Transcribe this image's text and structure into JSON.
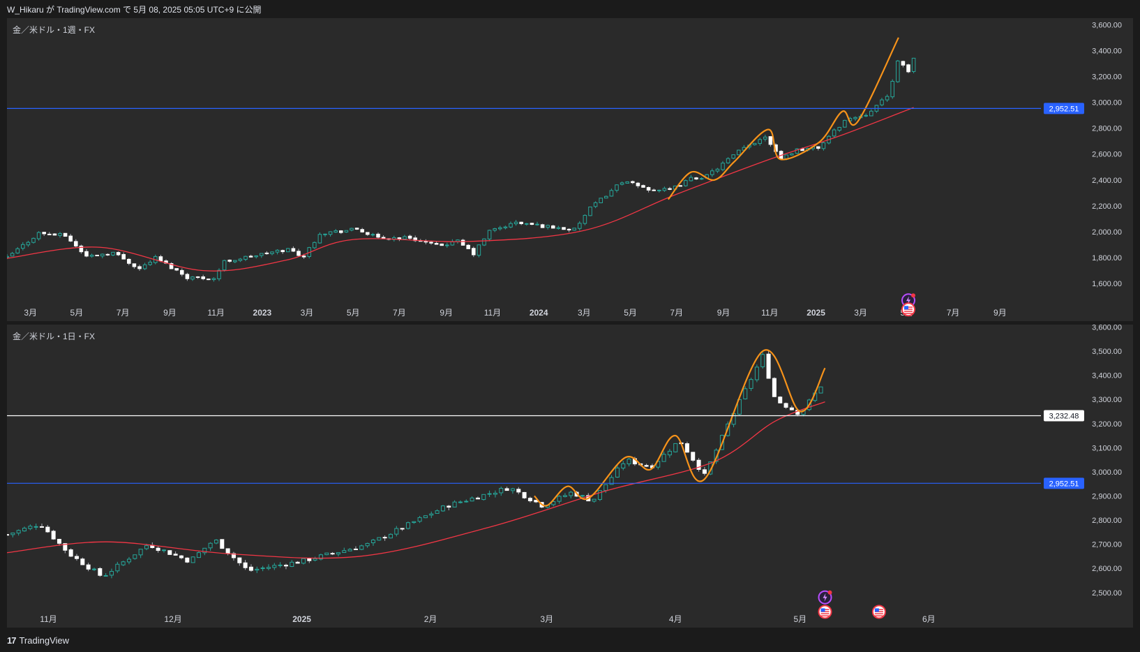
{
  "header": {
    "publish_info": "W_Hikaru が TradingView.com で 5月 08, 2025 05:05 UTC+9 に公開"
  },
  "footer": {
    "brand": "TradingView",
    "logo_glyph": "17"
  },
  "colors": {
    "up": "#26a69a",
    "down_fill": "#ffffff",
    "ma": "#f23645",
    "pattern": "#f7931a",
    "support": "#2962ff",
    "price_line": "#ffffff"
  },
  "chart_data": [
    {
      "type": "candlestick",
      "title": "金／米ドル・1週・FX",
      "ylim": [
        1450,
        3650
      ],
      "y_ticks": [
        "1,600.00",
        "1,800.00",
        "2,000.00",
        "2,200.00",
        "2,400.00",
        "2,600.00",
        "2,800.00",
        "3,000.00",
        "3,200.00",
        "3,400.00",
        "3,600.00"
      ],
      "y_tick_values": [
        1600,
        1800,
        2000,
        2200,
        2400,
        2600,
        2800,
        3000,
        3200,
        3400,
        3600
      ],
      "x_range": [
        "2022-01-29",
        "2025-10-25"
      ],
      "x_ticks": [
        {
          "label": "3月",
          "date": "2022-03-01"
        },
        {
          "label": "5月",
          "date": "2022-05-01"
        },
        {
          "label": "7月",
          "date": "2022-07-01"
        },
        {
          "label": "9月",
          "date": "2022-09-01"
        },
        {
          "label": "11月",
          "date": "2022-11-01"
        },
        {
          "label": "2023",
          "date": "2023-01-01",
          "bold": true
        },
        {
          "label": "3月",
          "date": "2023-03-01"
        },
        {
          "label": "5月",
          "date": "2023-05-01"
        },
        {
          "label": "7月",
          "date": "2023-07-01"
        },
        {
          "label": "9月",
          "date": "2023-09-01"
        },
        {
          "label": "11月",
          "date": "2023-11-01"
        },
        {
          "label": "2024",
          "date": "2024-01-01",
          "bold": true
        },
        {
          "label": "3月",
          "date": "2024-03-01"
        },
        {
          "label": "5月",
          "date": "2024-05-01"
        },
        {
          "label": "7月",
          "date": "2024-07-01"
        },
        {
          "label": "9月",
          "date": "2024-09-01"
        },
        {
          "label": "11月",
          "date": "2024-11-01"
        },
        {
          "label": "2025",
          "date": "2025-01-01",
          "bold": true
        },
        {
          "label": "3月",
          "date": "2025-03-01"
        },
        {
          "label": "5月",
          "date": "2025-05-01"
        },
        {
          "label": "7月",
          "date": "2025-07-01"
        },
        {
          "label": "9月",
          "date": "2025-09-01"
        }
      ],
      "candle_interval_days": 7,
      "price_anchors": [
        {
          "date": "2022-01-29",
          "close": 1800
        },
        {
          "date": "2022-03-12",
          "close": 1990
        },
        {
          "date": "2022-04-16",
          "close": 1970
        },
        {
          "date": "2022-05-14",
          "close": 1810
        },
        {
          "date": "2022-06-18",
          "close": 1840
        },
        {
          "date": "2022-07-23",
          "close": 1715
        },
        {
          "date": "2022-08-13",
          "close": 1800
        },
        {
          "date": "2022-09-24",
          "close": 1650
        },
        {
          "date": "2022-10-29",
          "close": 1640
        },
        {
          "date": "2022-11-12",
          "close": 1770
        },
        {
          "date": "2022-12-31",
          "close": 1825
        },
        {
          "date": "2023-02-04",
          "close": 1865
        },
        {
          "date": "2023-02-25",
          "close": 1810
        },
        {
          "date": "2023-03-18",
          "close": 1990
        },
        {
          "date": "2023-04-15",
          "close": 2005
        },
        {
          "date": "2023-05-06",
          "close": 2020
        },
        {
          "date": "2023-06-03",
          "close": 1950
        },
        {
          "date": "2023-07-15",
          "close": 1955
        },
        {
          "date": "2023-08-19",
          "close": 1890
        },
        {
          "date": "2023-09-16",
          "close": 1925
        },
        {
          "date": "2023-10-07",
          "close": 1830
        },
        {
          "date": "2023-10-28",
          "close": 2005
        },
        {
          "date": "2023-12-02",
          "close": 2070
        },
        {
          "date": "2024-01-06",
          "close": 2045
        },
        {
          "date": "2024-02-17",
          "close": 2015
        },
        {
          "date": "2024-03-09",
          "close": 2180
        },
        {
          "date": "2024-04-20",
          "close": 2390
        },
        {
          "date": "2024-05-25",
          "close": 2330
        },
        {
          "date": "2024-06-22",
          "close": 2320
        },
        {
          "date": "2024-07-20",
          "close": 2410
        },
        {
          "date": "2024-08-10",
          "close": 2430
        },
        {
          "date": "2024-09-21",
          "close": 2620
        },
        {
          "date": "2024-10-26",
          "close": 2740
        },
        {
          "date": "2024-11-16",
          "close": 2570
        },
        {
          "date": "2024-12-07",
          "close": 2635
        },
        {
          "date": "2025-01-04",
          "close": 2650
        },
        {
          "date": "2025-02-08",
          "close": 2860
        },
        {
          "date": "2025-03-08",
          "close": 2910
        },
        {
          "date": "2025-04-05",
          "close": 3040
        },
        {
          "date": "2025-04-19",
          "close": 3310
        },
        {
          "date": "2025-05-03",
          "close": 3240
        },
        {
          "date": "2025-05-10",
          "close": 3340
        }
      ],
      "ma_line": [
        {
          "date": "2022-01-29",
          "value": 1795
        },
        {
          "date": "2022-06-01",
          "value": 1880
        },
        {
          "date": "2022-10-15",
          "value": 1700
        },
        {
          "date": "2023-02-01",
          "value": 1780
        },
        {
          "date": "2023-05-01",
          "value": 1940
        },
        {
          "date": "2023-10-01",
          "value": 1925
        },
        {
          "date": "2024-03-01",
          "value": 2010
        },
        {
          "date": "2024-07-01",
          "value": 2290
        },
        {
          "date": "2024-11-01",
          "value": 2560
        },
        {
          "date": "2025-02-01",
          "value": 2740
        },
        {
          "date": "2025-05-10",
          "value": 2960
        }
      ],
      "pattern_line": [
        {
          "date": "2024-06-20",
          "value": 2250
        },
        {
          "date": "2024-07-20",
          "value": 2460
        },
        {
          "date": "2024-08-20",
          "value": 2400
        },
        {
          "date": "2024-09-15",
          "value": 2540
        },
        {
          "date": "2024-10-30",
          "value": 2790
        },
        {
          "date": "2024-11-15",
          "value": 2560
        },
        {
          "date": "2025-01-05",
          "value": 2690
        },
        {
          "date": "2025-02-05",
          "value": 2930
        },
        {
          "date": "2025-02-25",
          "value": 2850
        },
        {
          "date": "2025-04-20",
          "value": 3500
        }
      ],
      "support_level": {
        "value": 2952.51,
        "label": "2,952.51"
      },
      "event_icons": [
        {
          "kind": "lightning",
          "date": "2025-05-03",
          "value": 1470
        },
        {
          "kind": "us-flag",
          "date": "2025-05-03",
          "value": 1400
        }
      ]
    },
    {
      "type": "candlestick",
      "title": "金／米ドル・1日・FX",
      "ylim": [
        2430,
        3610
      ],
      "y_ticks": [
        "2,500.00",
        "2,600.00",
        "2,700.00",
        "2,800.00",
        "2,900.00",
        "3,000.00",
        "3,100.00",
        "3,200.00",
        "3,300.00",
        "3,400.00",
        "3,500.00",
        "3,600.00"
      ],
      "y_tick_values": [
        2500,
        2600,
        2700,
        2800,
        2900,
        3000,
        3100,
        3200,
        3300,
        3400,
        3500,
        3600
      ],
      "x_range": [
        "2024-10-22",
        "2025-06-28"
      ],
      "x_ticks": [
        {
          "label": "11月",
          "date": "2024-11-01"
        },
        {
          "label": "12月",
          "date": "2024-12-01"
        },
        {
          "label": "2025",
          "date": "2025-01-01",
          "bold": true
        },
        {
          "label": "2月",
          "date": "2025-02-01"
        },
        {
          "label": "3月",
          "date": "2025-03-01"
        },
        {
          "label": "4月",
          "date": "2025-04-01"
        },
        {
          "label": "5月",
          "date": "2025-05-01"
        },
        {
          "label": "6月",
          "date": "2025-06-01"
        }
      ],
      "candle_interval_days": 1.4,
      "price_anchors": [
        {
          "date": "2024-10-22",
          "close": 2740
        },
        {
          "date": "2024-10-30",
          "close": 2785
        },
        {
          "date": "2024-11-06",
          "close": 2660
        },
        {
          "date": "2024-11-14",
          "close": 2565
        },
        {
          "date": "2024-11-25",
          "close": 2700
        },
        {
          "date": "2024-12-05",
          "close": 2630
        },
        {
          "date": "2024-12-11",
          "close": 2720
        },
        {
          "date": "2024-12-19",
          "close": 2590
        },
        {
          "date": "2025-01-01",
          "close": 2630
        },
        {
          "date": "2025-01-17",
          "close": 2700
        },
        {
          "date": "2025-02-05",
          "close": 2860
        },
        {
          "date": "2025-02-20",
          "close": 2935
        },
        {
          "date": "2025-02-28",
          "close": 2860
        },
        {
          "date": "2025-03-07",
          "close": 2915
        },
        {
          "date": "2025-03-12",
          "close": 2880
        },
        {
          "date": "2025-03-20",
          "close": 3050
        },
        {
          "date": "2025-03-26",
          "close": 3020
        },
        {
          "date": "2025-04-02",
          "close": 3130
        },
        {
          "date": "2025-04-08",
          "close": 2985
        },
        {
          "date": "2025-04-14",
          "close": 3210
        },
        {
          "date": "2025-04-22",
          "close": 3480
        },
        {
          "date": "2025-04-25",
          "close": 3300
        },
        {
          "date": "2025-05-01",
          "close": 3240
        },
        {
          "date": "2025-05-07",
          "close": 3380
        }
      ],
      "ma_line": [
        {
          "date": "2024-10-22",
          "value": 2665
        },
        {
          "date": "2024-11-15",
          "value": 2710
        },
        {
          "date": "2024-12-15",
          "value": 2660
        },
        {
          "date": "2025-01-15",
          "value": 2650
        },
        {
          "date": "2025-02-15",
          "value": 2770
        },
        {
          "date": "2025-03-15",
          "value": 2920
        },
        {
          "date": "2025-04-10",
          "value": 3040
        },
        {
          "date": "2025-04-25",
          "value": 3210
        },
        {
          "date": "2025-05-07",
          "value": 3290
        }
      ],
      "pattern_line": [
        {
          "date": "2025-02-26",
          "value": 2900
        },
        {
          "date": "2025-03-01",
          "value": 2860
        },
        {
          "date": "2025-03-06",
          "value": 2940
        },
        {
          "date": "2025-03-11",
          "value": 2890
        },
        {
          "date": "2025-03-20",
          "value": 3060
        },
        {
          "date": "2025-03-26",
          "value": 3010
        },
        {
          "date": "2025-04-01",
          "value": 3150
        },
        {
          "date": "2025-04-08",
          "value": 2970
        },
        {
          "date": "2025-04-22",
          "value": 3500
        },
        {
          "date": "2025-05-01",
          "value": 3250
        },
        {
          "date": "2025-05-07",
          "value": 3430
        }
      ],
      "support_level": {
        "value": 2952.51,
        "label": "2,952.51"
      },
      "current_price": {
        "value": 3232.48,
        "label": "3,232.48"
      },
      "event_icons": [
        {
          "kind": "lightning",
          "date": "2025-05-07",
          "value": 2480
        },
        {
          "kind": "us-flag",
          "date": "2025-05-07",
          "value": 2420
        },
        {
          "kind": "us-flag",
          "date": "2025-05-20",
          "value": 2420
        }
      ]
    }
  ]
}
